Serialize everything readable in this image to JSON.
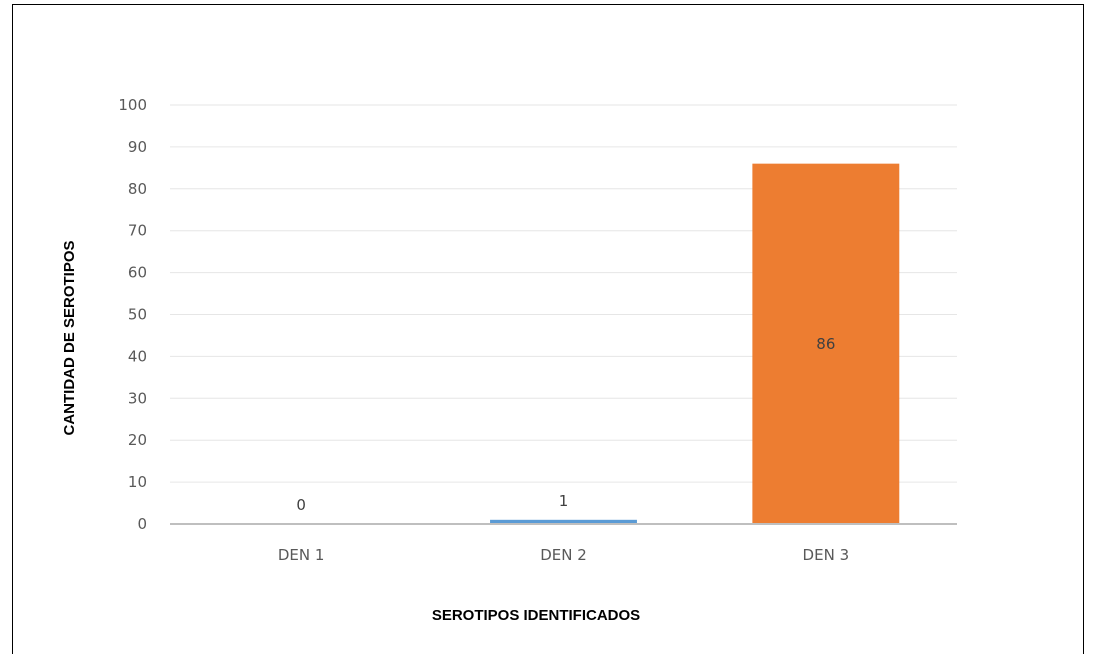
{
  "chart_data": {
    "type": "bar",
    "title": "",
    "xlabel": "SEROTIPOS IDENTIFICADOS",
    "ylabel": "CANTIDAD DE SEROTIPOS",
    "categories": [
      "DEN 1",
      "DEN 2",
      "DEN 3"
    ],
    "values": [
      0,
      1,
      86
    ],
    "data_labels": [
      "0",
      "1",
      "86"
    ],
    "colors": [
      "#5b9bd5",
      "#5b9bd5",
      "#ed7d31"
    ],
    "ylim": [
      0,
      100
    ],
    "yticks": [
      0,
      10,
      20,
      30,
      40,
      50,
      60,
      70,
      80,
      90,
      100
    ],
    "grid": true,
    "legend": "none"
  }
}
